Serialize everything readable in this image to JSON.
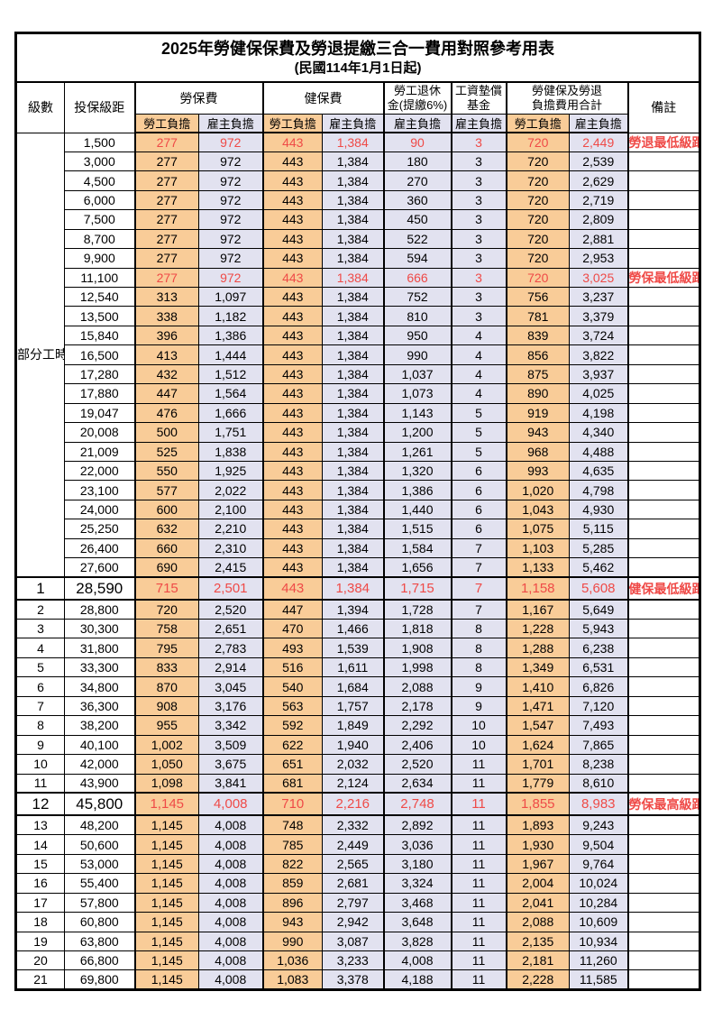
{
  "title": "2025年勞健保保費及勞退提繳三合一費用對照參考用表",
  "subtitle": "(民國114年1月1日起)",
  "header": {
    "level": "級數",
    "bracket": "投保級距",
    "labor_insurance": "勞保費",
    "health_insurance": "健保費",
    "pension_line1": "勞工退休",
    "pension_line2": "金(提繳6%)",
    "wage_fund_line1": "工資墊償",
    "wage_fund_line2": "基金",
    "total_line1": "勞健保及勞退",
    "total_line2": "負擔費用合計",
    "remark": "備註",
    "employee_label": "勞工負擔",
    "employer_label": "雇主負擔"
  },
  "part_time_label": "部分工時",
  "colors": {
    "employee_bg": "#f9cc98",
    "employer_bg": "#e2e2f0",
    "highlight_red": "#ef4a47",
    "border": "#000000"
  },
  "rows": [
    {
      "section": "part_time",
      "level": "",
      "bracket": "1,500",
      "cells": [
        "277",
        "972",
        "443",
        "1,384",
        "90",
        "3",
        "720",
        "2,449"
      ],
      "remark": "勞退最低級距",
      "red": true,
      "large": false
    },
    {
      "section": "part_time",
      "level": "",
      "bracket": "3,000",
      "cells": [
        "277",
        "972",
        "443",
        "1,384",
        "180",
        "3",
        "720",
        "2,539"
      ],
      "remark": "",
      "red": false,
      "large": false
    },
    {
      "section": "part_time",
      "level": "",
      "bracket": "4,500",
      "cells": [
        "277",
        "972",
        "443",
        "1,384",
        "270",
        "3",
        "720",
        "2,629"
      ],
      "remark": "",
      "red": false,
      "large": false
    },
    {
      "section": "part_time",
      "level": "",
      "bracket": "6,000",
      "cells": [
        "277",
        "972",
        "443",
        "1,384",
        "360",
        "3",
        "720",
        "2,719"
      ],
      "remark": "",
      "red": false,
      "large": false
    },
    {
      "section": "part_time",
      "level": "",
      "bracket": "7,500",
      "cells": [
        "277",
        "972",
        "443",
        "1,384",
        "450",
        "3",
        "720",
        "2,809"
      ],
      "remark": "",
      "red": false,
      "large": false
    },
    {
      "section": "part_time",
      "level": "",
      "bracket": "8,700",
      "cells": [
        "277",
        "972",
        "443",
        "1,384",
        "522",
        "3",
        "720",
        "2,881"
      ],
      "remark": "",
      "red": false,
      "large": false
    },
    {
      "section": "part_time",
      "level": "",
      "bracket": "9,900",
      "cells": [
        "277",
        "972",
        "443",
        "1,384",
        "594",
        "3",
        "720",
        "2,953"
      ],
      "remark": "",
      "red": false,
      "large": false
    },
    {
      "section": "part_time",
      "level": "",
      "bracket": "11,100",
      "cells": [
        "277",
        "972",
        "443",
        "1,384",
        "666",
        "3",
        "720",
        "3,025"
      ],
      "remark": "勞保最低級距",
      "red": true,
      "large": false
    },
    {
      "section": "part_time",
      "level": "",
      "bracket": "12,540",
      "cells": [
        "313",
        "1,097",
        "443",
        "1,384",
        "752",
        "3",
        "756",
        "3,237"
      ],
      "remark": "",
      "red": false,
      "large": false
    },
    {
      "section": "part_time",
      "level": "",
      "bracket": "13,500",
      "cells": [
        "338",
        "1,182",
        "443",
        "1,384",
        "810",
        "3",
        "781",
        "3,379"
      ],
      "remark": "",
      "red": false,
      "large": false
    },
    {
      "section": "part_time",
      "level": "",
      "bracket": "15,840",
      "cells": [
        "396",
        "1,386",
        "443",
        "1,384",
        "950",
        "4",
        "839",
        "3,724"
      ],
      "remark": "",
      "red": false,
      "large": false
    },
    {
      "section": "part_time",
      "level": "",
      "bracket": "16,500",
      "cells": [
        "413",
        "1,444",
        "443",
        "1,384",
        "990",
        "4",
        "856",
        "3,822"
      ],
      "remark": "",
      "red": false,
      "large": false
    },
    {
      "section": "part_time",
      "level": "",
      "bracket": "17,280",
      "cells": [
        "432",
        "1,512",
        "443",
        "1,384",
        "1,037",
        "4",
        "875",
        "3,937"
      ],
      "remark": "",
      "red": false,
      "large": false
    },
    {
      "section": "part_time",
      "level": "",
      "bracket": "17,880",
      "cells": [
        "447",
        "1,564",
        "443",
        "1,384",
        "1,073",
        "4",
        "890",
        "4,025"
      ],
      "remark": "",
      "red": false,
      "large": false
    },
    {
      "section": "part_time",
      "level": "",
      "bracket": "19,047",
      "cells": [
        "476",
        "1,666",
        "443",
        "1,384",
        "1,143",
        "5",
        "919",
        "4,198"
      ],
      "remark": "",
      "red": false,
      "large": false
    },
    {
      "section": "part_time",
      "level": "",
      "bracket": "20,008",
      "cells": [
        "500",
        "1,751",
        "443",
        "1,384",
        "1,200",
        "5",
        "943",
        "4,340"
      ],
      "remark": "",
      "red": false,
      "large": false
    },
    {
      "section": "part_time",
      "level": "",
      "bracket": "21,009",
      "cells": [
        "525",
        "1,838",
        "443",
        "1,384",
        "1,261",
        "5",
        "968",
        "4,488"
      ],
      "remark": "",
      "red": false,
      "large": false
    },
    {
      "section": "part_time",
      "level": "",
      "bracket": "22,000",
      "cells": [
        "550",
        "1,925",
        "443",
        "1,384",
        "1,320",
        "6",
        "993",
        "4,635"
      ],
      "remark": "",
      "red": false,
      "large": false
    },
    {
      "section": "part_time",
      "level": "",
      "bracket": "23,100",
      "cells": [
        "577",
        "2,022",
        "443",
        "1,384",
        "1,386",
        "6",
        "1,020",
        "4,798"
      ],
      "remark": "",
      "red": false,
      "large": false
    },
    {
      "section": "part_time",
      "level": "",
      "bracket": "24,000",
      "cells": [
        "600",
        "2,100",
        "443",
        "1,384",
        "1,440",
        "6",
        "1,043",
        "4,930"
      ],
      "remark": "",
      "red": false,
      "large": false
    },
    {
      "section": "part_time",
      "level": "",
      "bracket": "25,250",
      "cells": [
        "632",
        "2,210",
        "443",
        "1,384",
        "1,515",
        "6",
        "1,075",
        "5,115"
      ],
      "remark": "",
      "red": false,
      "large": false
    },
    {
      "section": "part_time",
      "level": "",
      "bracket": "26,400",
      "cells": [
        "660",
        "2,310",
        "443",
        "1,384",
        "1,584",
        "7",
        "1,103",
        "5,285"
      ],
      "remark": "",
      "red": false,
      "large": false
    },
    {
      "section": "part_time",
      "level": "",
      "bracket": "27,600",
      "cells": [
        "690",
        "2,415",
        "443",
        "1,384",
        "1,656",
        "7",
        "1,133",
        "5,462"
      ],
      "remark": "",
      "red": false,
      "large": false
    },
    {
      "section": "level",
      "level": "1",
      "bracket": "28,590",
      "cells": [
        "715",
        "2,501",
        "443",
        "1,384",
        "1,715",
        "7",
        "1,158",
        "5,608"
      ],
      "remark": "健保最低級距",
      "red": true,
      "large": true
    },
    {
      "section": "level",
      "level": "2",
      "bracket": "28,800",
      "cells": [
        "720",
        "2,520",
        "447",
        "1,394",
        "1,728",
        "7",
        "1,167",
        "5,649"
      ],
      "remark": "",
      "red": false,
      "large": false
    },
    {
      "section": "level",
      "level": "3",
      "bracket": "30,300",
      "cells": [
        "758",
        "2,651",
        "470",
        "1,466",
        "1,818",
        "8",
        "1,228",
        "5,943"
      ],
      "remark": "",
      "red": false,
      "large": false
    },
    {
      "section": "level",
      "level": "4",
      "bracket": "31,800",
      "cells": [
        "795",
        "2,783",
        "493",
        "1,539",
        "1,908",
        "8",
        "1,288",
        "6,238"
      ],
      "remark": "",
      "red": false,
      "large": false
    },
    {
      "section": "level",
      "level": "5",
      "bracket": "33,300",
      "cells": [
        "833",
        "2,914",
        "516",
        "1,611",
        "1,998",
        "8",
        "1,349",
        "6,531"
      ],
      "remark": "",
      "red": false,
      "large": false
    },
    {
      "section": "level",
      "level": "6",
      "bracket": "34,800",
      "cells": [
        "870",
        "3,045",
        "540",
        "1,684",
        "2,088",
        "9",
        "1,410",
        "6,826"
      ],
      "remark": "",
      "red": false,
      "large": false
    },
    {
      "section": "level",
      "level": "7",
      "bracket": "36,300",
      "cells": [
        "908",
        "3,176",
        "563",
        "1,757",
        "2,178",
        "9",
        "1,471",
        "7,120"
      ],
      "remark": "",
      "red": false,
      "large": false
    },
    {
      "section": "level",
      "level": "8",
      "bracket": "38,200",
      "cells": [
        "955",
        "3,342",
        "592",
        "1,849",
        "2,292",
        "10",
        "1,547",
        "7,493"
      ],
      "remark": "",
      "red": false,
      "large": false
    },
    {
      "section": "level",
      "level": "9",
      "bracket": "40,100",
      "cells": [
        "1,002",
        "3,509",
        "622",
        "1,940",
        "2,406",
        "10",
        "1,624",
        "7,865"
      ],
      "remark": "",
      "red": false,
      "large": false
    },
    {
      "section": "level",
      "level": "10",
      "bracket": "42,000",
      "cells": [
        "1,050",
        "3,675",
        "651",
        "2,032",
        "2,520",
        "11",
        "1,701",
        "8,238"
      ],
      "remark": "",
      "red": false,
      "large": false
    },
    {
      "section": "level",
      "level": "11",
      "bracket": "43,900",
      "cells": [
        "1,098",
        "3,841",
        "681",
        "2,124",
        "2,634",
        "11",
        "1,779",
        "8,610"
      ],
      "remark": "",
      "red": false,
      "large": false
    },
    {
      "section": "level",
      "level": "12",
      "bracket": "45,800",
      "cells": [
        "1,145",
        "4,008",
        "710",
        "2,216",
        "2,748",
        "11",
        "1,855",
        "8,983"
      ],
      "remark": "勞保最高級距",
      "red": true,
      "large": true
    },
    {
      "section": "level",
      "level": "13",
      "bracket": "48,200",
      "cells": [
        "1,145",
        "4,008",
        "748",
        "2,332",
        "2,892",
        "11",
        "1,893",
        "9,243"
      ],
      "remark": "",
      "red": false,
      "large": false
    },
    {
      "section": "level",
      "level": "14",
      "bracket": "50,600",
      "cells": [
        "1,145",
        "4,008",
        "785",
        "2,449",
        "3,036",
        "11",
        "1,930",
        "9,504"
      ],
      "remark": "",
      "red": false,
      "large": false
    },
    {
      "section": "level",
      "level": "15",
      "bracket": "53,000",
      "cells": [
        "1,145",
        "4,008",
        "822",
        "2,565",
        "3,180",
        "11",
        "1,967",
        "9,764"
      ],
      "remark": "",
      "red": false,
      "large": false
    },
    {
      "section": "level",
      "level": "16",
      "bracket": "55,400",
      "cells": [
        "1,145",
        "4,008",
        "859",
        "2,681",
        "3,324",
        "11",
        "2,004",
        "10,024"
      ],
      "remark": "",
      "red": false,
      "large": false
    },
    {
      "section": "level",
      "level": "17",
      "bracket": "57,800",
      "cells": [
        "1,145",
        "4,008",
        "896",
        "2,797",
        "3,468",
        "11",
        "2,041",
        "10,284"
      ],
      "remark": "",
      "red": false,
      "large": false
    },
    {
      "section": "level",
      "level": "18",
      "bracket": "60,800",
      "cells": [
        "1,145",
        "4,008",
        "943",
        "2,942",
        "3,648",
        "11",
        "2,088",
        "10,609"
      ],
      "remark": "",
      "red": false,
      "large": false
    },
    {
      "section": "level",
      "level": "19",
      "bracket": "63,800",
      "cells": [
        "1,145",
        "4,008",
        "990",
        "3,087",
        "3,828",
        "11",
        "2,135",
        "10,934"
      ],
      "remark": "",
      "red": false,
      "large": false
    },
    {
      "section": "level",
      "level": "20",
      "bracket": "66,800",
      "cells": [
        "1,145",
        "4,008",
        "1,036",
        "3,233",
        "4,008",
        "11",
        "2,181",
        "11,260"
      ],
      "remark": "",
      "red": false,
      "large": false
    },
    {
      "section": "level",
      "level": "21",
      "bracket": "69,800",
      "cells": [
        "1,145",
        "4,008",
        "1,083",
        "3,378",
        "4,188",
        "11",
        "2,228",
        "11,585"
      ],
      "remark": "",
      "red": false,
      "large": false
    }
  ]
}
